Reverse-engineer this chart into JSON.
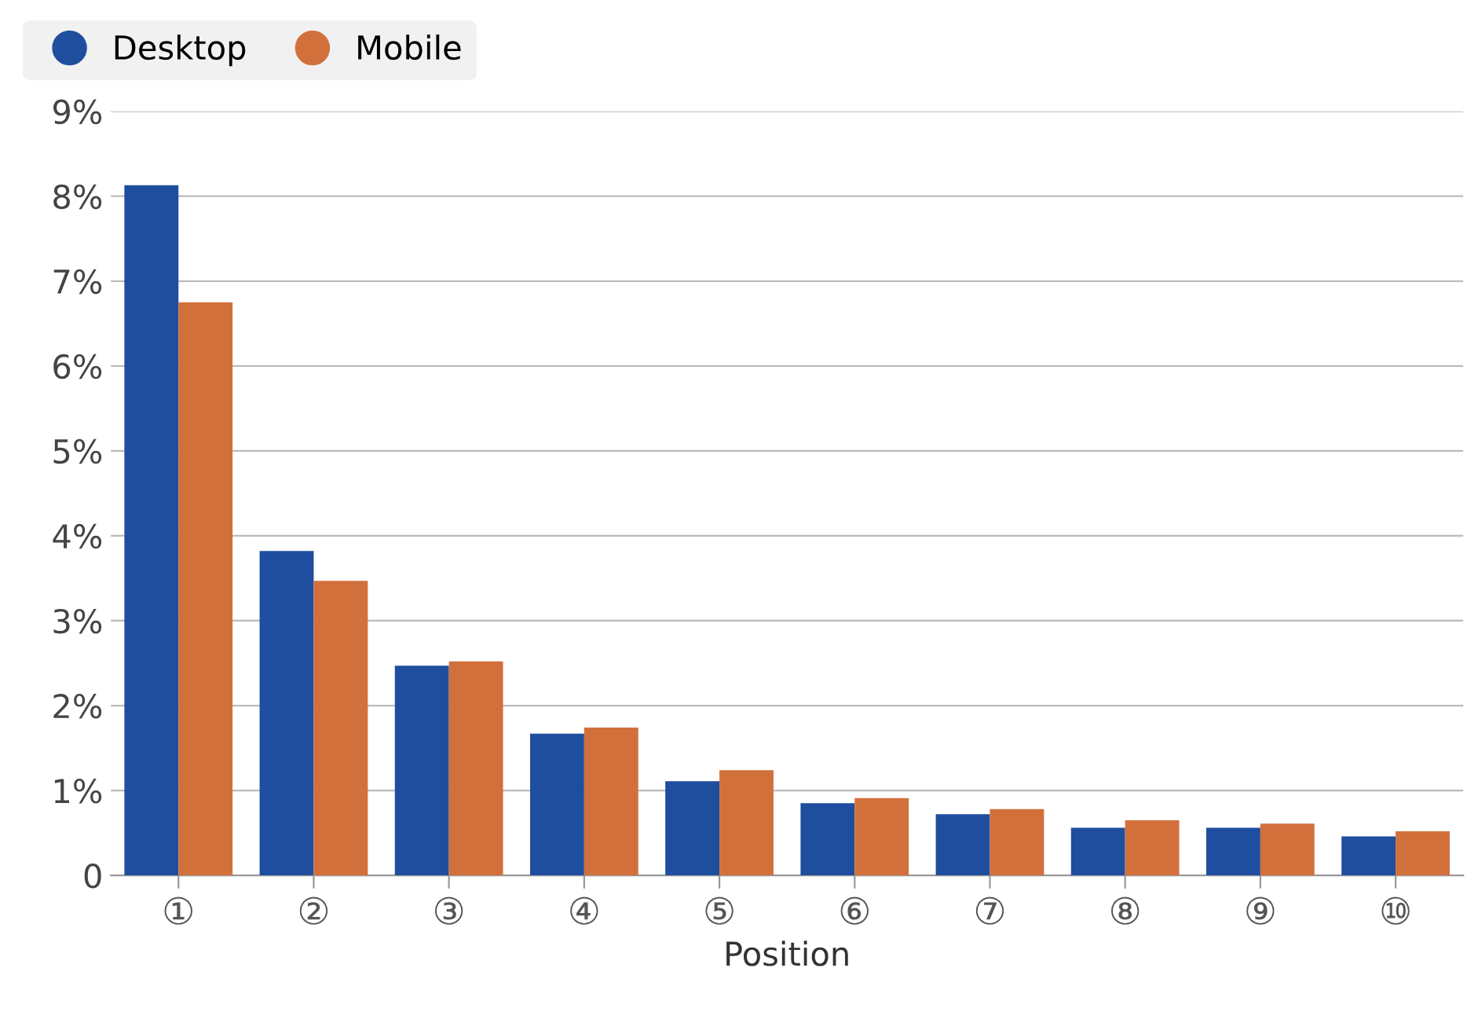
{
  "chart_data": {
    "type": "bar",
    "xlabel": "Position",
    "categories": [
      "①",
      "②",
      "③",
      "④",
      "⑤",
      "⑥",
      "⑦",
      "⑧",
      "⑨",
      "⑩"
    ],
    "series": [
      {
        "name": "Desktop",
        "color": "#1f4e9e",
        "values": [
          8.13,
          3.82,
          2.47,
          1.67,
          1.11,
          0.85,
          0.72,
          0.56,
          0.56,
          0.46
        ]
      },
      {
        "name": "Mobile",
        "color": "#d2703c",
        "values": [
          6.75,
          3.47,
          2.52,
          1.74,
          1.24,
          0.91,
          0.78,
          0.65,
          0.61,
          0.52
        ]
      }
    ],
    "ylim": [
      0,
      9
    ],
    "yticks": [
      {
        "value": 0,
        "label": "0"
      },
      {
        "value": 1,
        "label": "1%"
      },
      {
        "value": 2,
        "label": "2%"
      },
      {
        "value": 3,
        "label": "3%"
      },
      {
        "value": 4,
        "label": "4%"
      },
      {
        "value": 5,
        "label": "5%"
      },
      {
        "value": 6,
        "label": "6%"
      },
      {
        "value": 7,
        "label": "7%"
      },
      {
        "value": 8,
        "label": "8%"
      },
      {
        "value": 9,
        "label": "9%"
      }
    ],
    "grid": "y",
    "legend": "top left"
  }
}
